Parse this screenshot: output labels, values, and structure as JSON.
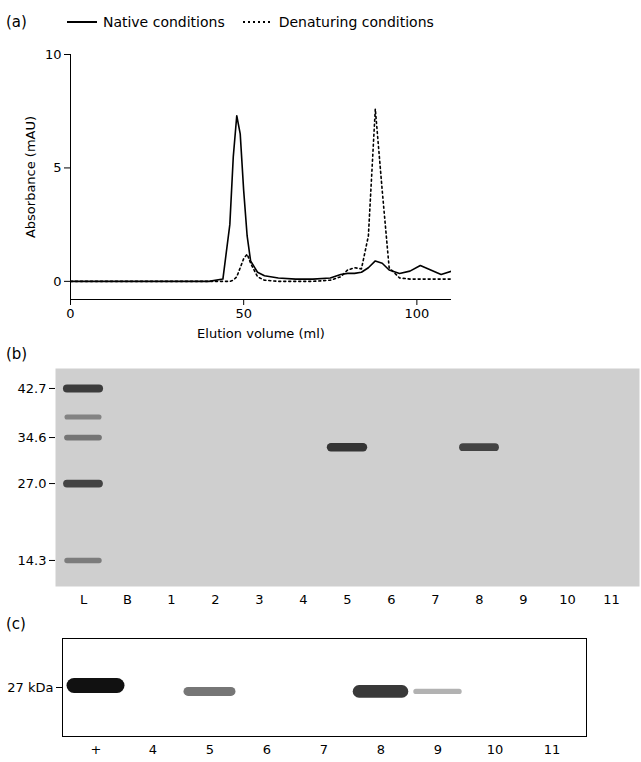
{
  "chart_data": [
    {
      "type": "line",
      "title": "(a)",
      "x_label": "Elution volume (ml)",
      "y_label": "Absorbance (mAU)",
      "x": [
        0,
        10,
        20,
        30,
        40,
        44,
        46,
        47,
        48,
        49,
        50,
        51,
        52,
        54,
        56,
        60,
        65,
        70,
        75,
        78,
        80,
        82,
        84,
        86,
        88,
        90,
        92,
        95,
        98,
        101,
        104,
        107,
        110
      ],
      "series": [
        {
          "name": "Native conditions",
          "color": "#000000",
          "line_style": "solid",
          "values": [
            0,
            0,
            0,
            0,
            0,
            0.1,
            2.5,
            5.5,
            7.3,
            6.5,
            4.0,
            2.0,
            0.9,
            0.4,
            0.25,
            0.15,
            0.1,
            0.1,
            0.15,
            0.3,
            0.35,
            0.35,
            0.4,
            0.6,
            0.9,
            0.8,
            0.5,
            0.35,
            0.45,
            0.7,
            0.5,
            0.3,
            0.45
          ]
        },
        {
          "name": "Denaturing conditions",
          "color": "#000000",
          "line_style": "dotted",
          "values": [
            0,
            0,
            0,
            0,
            0,
            0,
            0,
            0.05,
            0.2,
            0.6,
            1.0,
            1.2,
            0.8,
            0.2,
            0.05,
            0,
            0,
            0,
            0.05,
            0.2,
            0.5,
            0.6,
            0.55,
            2.0,
            7.6,
            4.0,
            0.6,
            0.15,
            0.1,
            0.1,
            0.1,
            0.1,
            0.1
          ]
        }
      ],
      "xlim": [
        0,
        110
      ],
      "xticks": [
        0,
        50,
        100
      ],
      "ylim": [
        -0.8,
        10
      ],
      "yticks": [
        0,
        5,
        10
      ],
      "legend": "top"
    },
    {
      "type": "gel",
      "title": "(b)",
      "categories": [
        "L",
        "B",
        "1",
        "2",
        "3",
        "4",
        "5",
        "6",
        "7",
        "8",
        "9",
        "10",
        "11"
      ],
      "ylim": [
        10,
        46
      ],
      "yticks": [
        42.7,
        34.6,
        {
          "value": 27,
          "label": "27.0"
        },
        14.3
      ],
      "color": "#262626",
      "bands": [
        {
          "lane": "L",
          "kda": 42.7,
          "intensity": 0.85
        },
        {
          "lane": "L",
          "kda": 38,
          "intensity": 0.35
        },
        {
          "lane": "L",
          "kda": 34.6,
          "intensity": 0.45
        },
        {
          "lane": "L",
          "kda": 27,
          "intensity": 0.8
        },
        {
          "lane": "L",
          "kda": 14.3,
          "intensity": 0.4
        },
        {
          "lane": "5",
          "kda": 33,
          "intensity": 0.9
        },
        {
          "lane": "8",
          "kda": 33,
          "intensity": 0.8
        }
      ]
    },
    {
      "type": "blot",
      "title": "(c)",
      "categories": [
        "+",
        "4",
        "5",
        "6",
        "7",
        "8",
        "9",
        "10",
        "11"
      ],
      "ylim": [
        22,
        32
      ],
      "yticks": [
        {
          "value": 27,
          "label": "27 kDa"
        }
      ],
      "color": "#111111",
      "bands": [
        {
          "lane": "+",
          "kda": 27.2,
          "intensity": 1.0
        },
        {
          "lane": "5",
          "kda": 26.6,
          "intensity": 0.5
        },
        {
          "lane": "8",
          "kda": 26.6,
          "intensity": 0.8
        },
        {
          "lane": "9",
          "kda": 26.6,
          "intensity": 0.2
        }
      ]
    }
  ]
}
